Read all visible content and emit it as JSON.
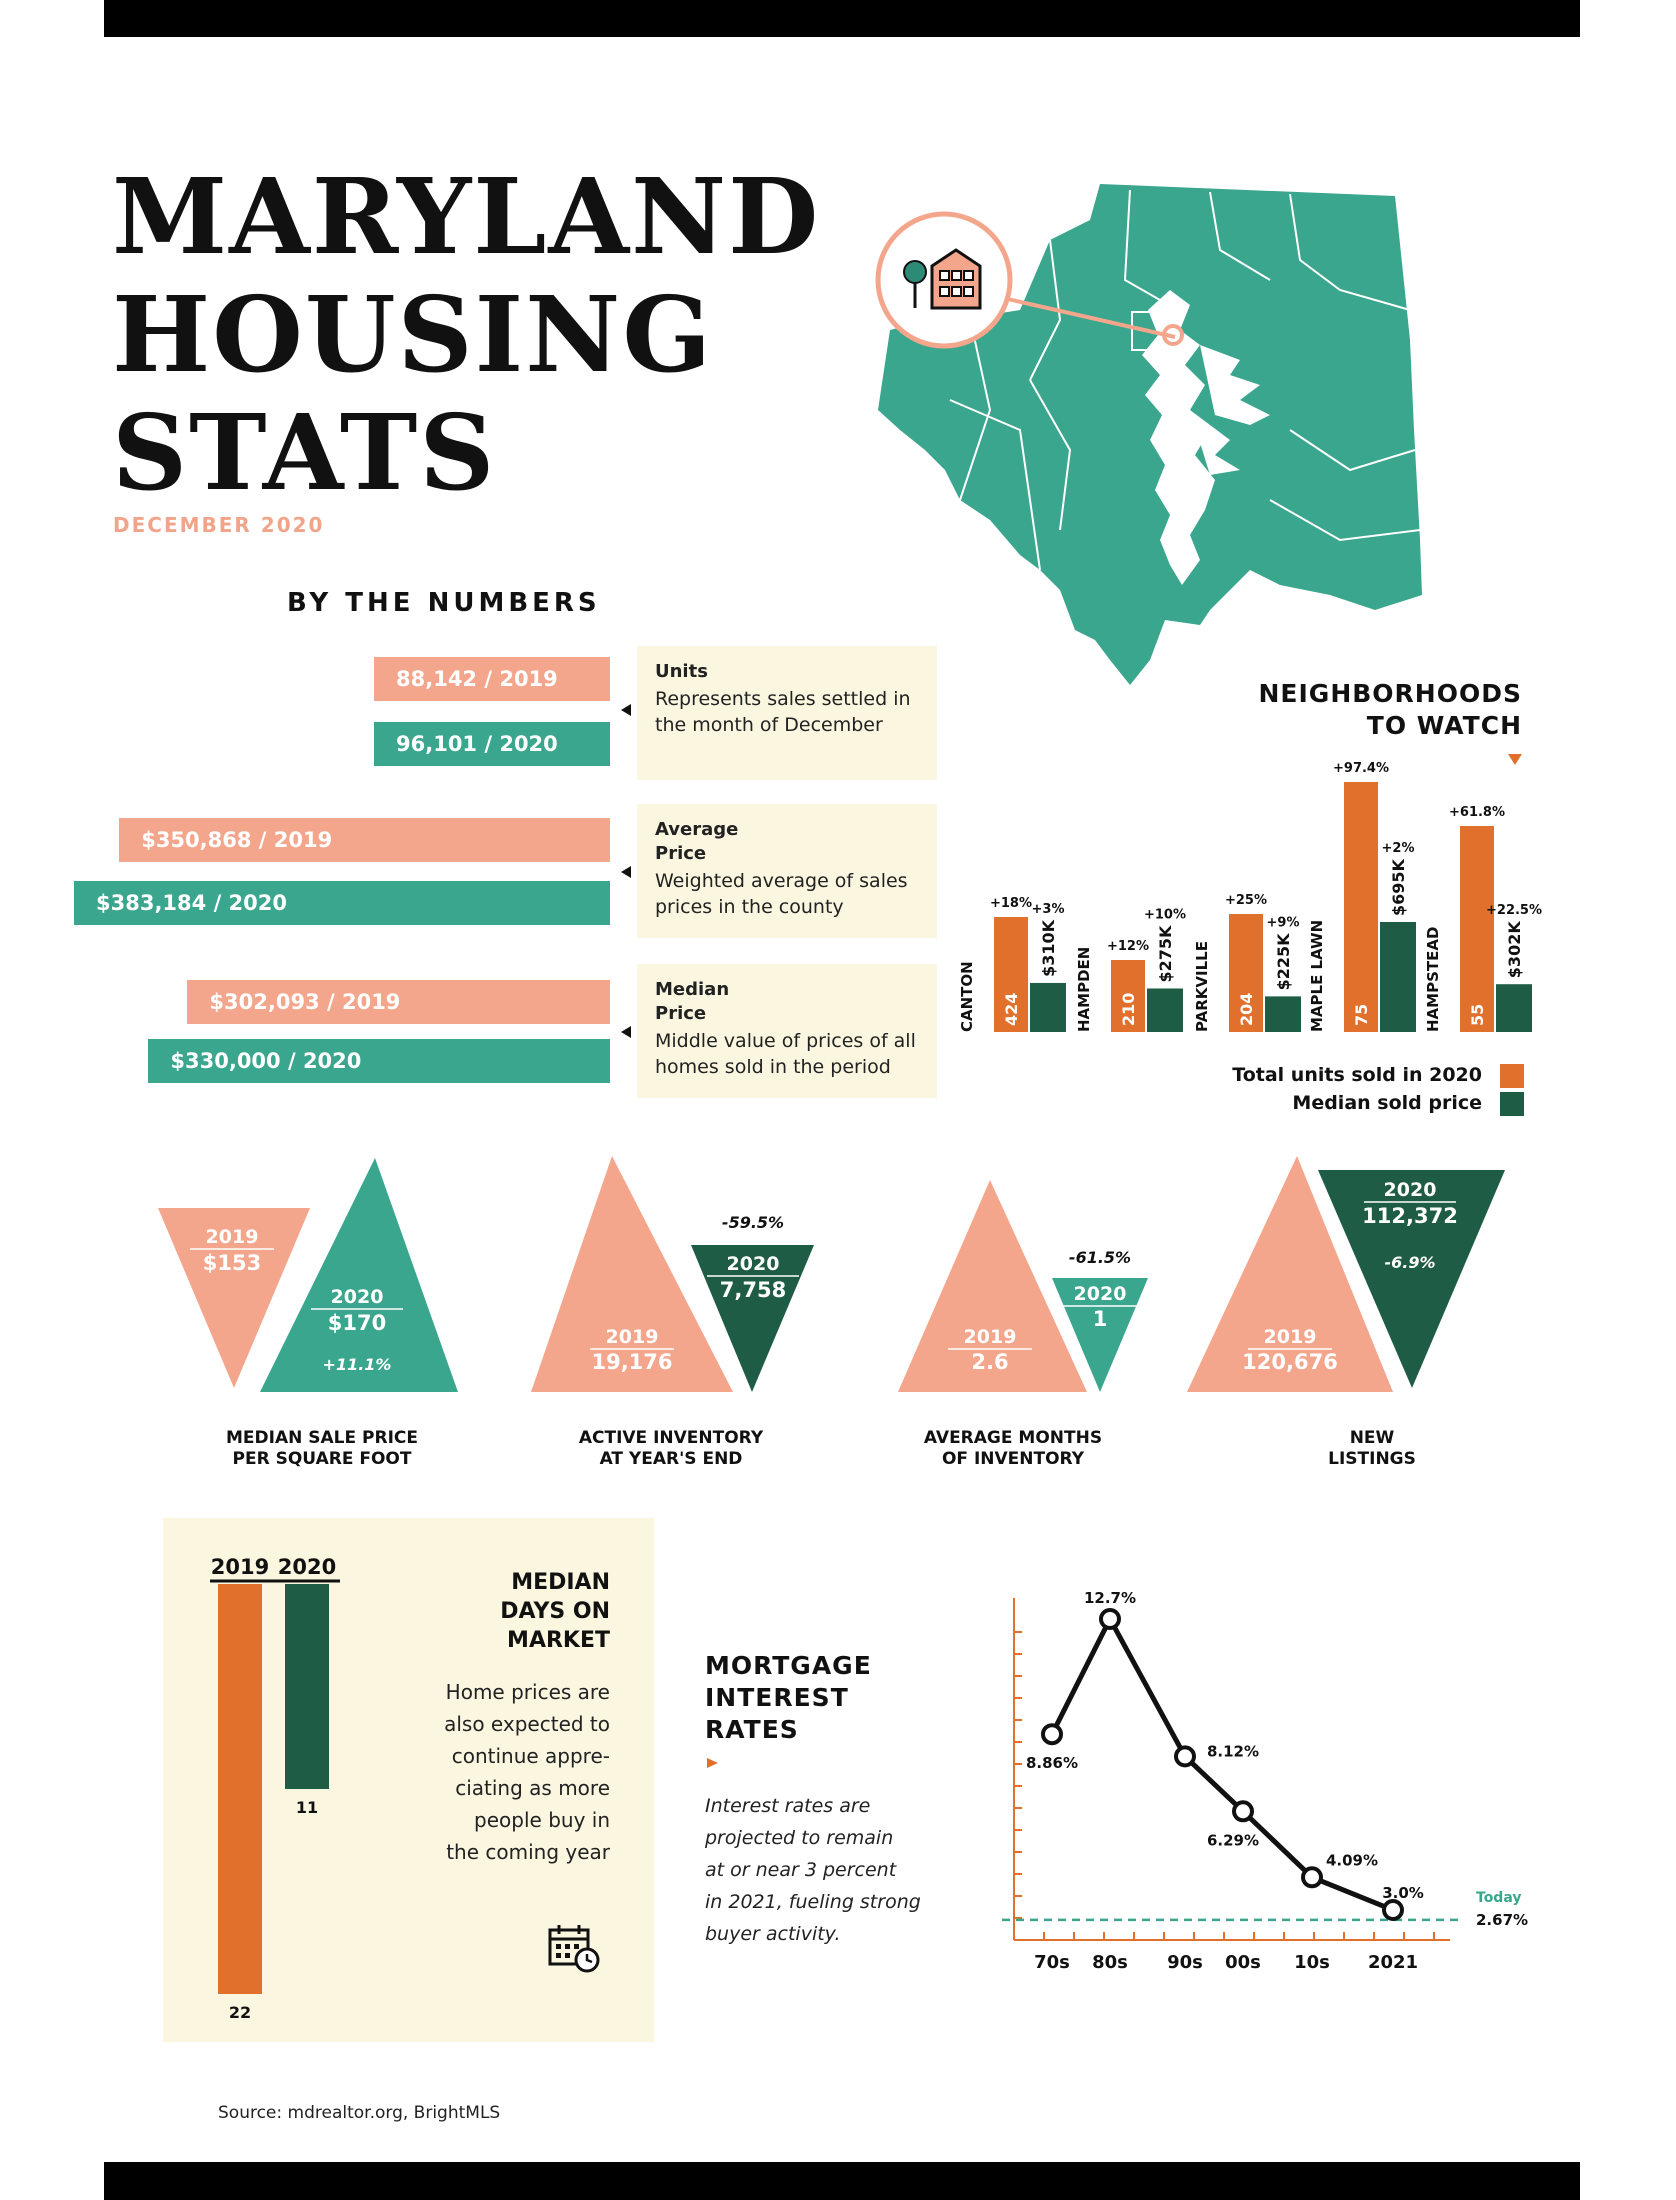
{
  "header": {
    "title_lines": [
      "MARYLAND",
      "HOUSING",
      "STATS"
    ],
    "subtitle": "DECEMBER 2020"
  },
  "by_the_numbers": {
    "heading": "BY THE NUMBERS",
    "items": [
      {
        "label_2019": "88,142 / 2019",
        "label_2020": "96,101 / 2020",
        "value_2019": 88142,
        "value_2020": 96101,
        "title": "Units",
        "description": "Represents sales settled in the month of December"
      },
      {
        "label_2019": "$350,868 / 2019",
        "label_2020": "$383,184 / 2020",
        "value_2019": 350868,
        "value_2020": 383184,
        "title": "Average Price",
        "description": "Weighted average of sales prices in the county"
      },
      {
        "label_2019": "$302,093 / 2019",
        "label_2020": "$330,000 / 2020",
        "value_2019": 302093,
        "value_2020": 330000,
        "title": "Median Price",
        "description": "Middle value of prices of all homes sold in the period"
      }
    ]
  },
  "neighborhoods": {
    "heading_lines": [
      "NEIGHBORHOODS",
      "TO WATCH"
    ],
    "legend": [
      {
        "label": "Total units sold in 2020",
        "color": "#e0702c"
      },
      {
        "label": "Median sold price",
        "color": "#1f5c45"
      }
    ]
  },
  "triangles": [
    {
      "caption_lines": [
        "MEDIAN SALE PRICE",
        "PER SQUARE FOOT"
      ],
      "year_2019": "2019",
      "value_2019": "$153",
      "year_2020": "2020",
      "value_2020": "$170",
      "change": "+11.1%"
    },
    {
      "caption_lines": [
        "ACTIVE INVENTORY",
        "AT YEAR'S END"
      ],
      "year_2019": "2019",
      "value_2019": "19,176",
      "year_2020": "2020",
      "value_2020": "7,758",
      "change": "-59.5%"
    },
    {
      "caption_lines": [
        "AVERAGE MONTHS",
        "OF INVENTORY"
      ],
      "year_2019": "2019",
      "value_2019": "2.6",
      "year_2020": "2020",
      "value_2020": "1",
      "change": "-61.5%"
    },
    {
      "caption_lines": [
        "NEW",
        "LISTINGS"
      ],
      "year_2019": "2019",
      "value_2019": "120,676",
      "year_2020": "2020",
      "value_2020": "112,372",
      "change": "-6.9%"
    }
  ],
  "days_on_market": {
    "title_lines": [
      "MEDIAN",
      "DAYS ON",
      "MARKET"
    ],
    "description_lines": [
      "Home prices are",
      "also expected to",
      "continue appre-",
      "ciating as more",
      "people buy in",
      "the coming year"
    ],
    "calendar_icon": "calendar-clock-icon"
  },
  "mortgage": {
    "title_lines": [
      "MORTGAGE",
      "INTEREST",
      "RATES"
    ],
    "description_lines": [
      "Interest rates are",
      "projected to remain",
      "at or near 3 percent",
      "in 2021, fueling strong",
      "buyer activity."
    ]
  },
  "source": "Source: mdrealtor.org, BrightMLS",
  "colors": {
    "peach": "#f4a68d",
    "teal": "#3aa68e",
    "dark_green": "#1f5c45",
    "orange": "#e0702c",
    "cream": "#fbf6e0"
  },
  "chart_data": [
    {
      "type": "bar",
      "title": "NEIGHBORHOODS TO WATCH",
      "categories": [
        "CANTON",
        "HAMPDEN",
        "PARKVILLE",
        "MAPLE LAWN",
        "HAMPSTEAD"
      ],
      "series": [
        {
          "name": "Total units sold in 2020",
          "values": [
            424,
            210,
            204,
            75,
            55
          ],
          "labels": [
            "424",
            "210",
            "204",
            "75",
            "55"
          ],
          "changes": [
            "+18%",
            "+12%",
            "+25%",
            "+97.4%",
            "+61.8%"
          ],
          "change_values": [
            18,
            12,
            25,
            97.4,
            61.8
          ]
        },
        {
          "name": "Median sold price",
          "values": [
            310000,
            275000,
            225000,
            695000,
            302000
          ],
          "labels": [
            "$310K",
            "$275K",
            "$225K",
            "$695K",
            "$302K"
          ],
          "changes": [
            "+3%",
            "+10%",
            "+9%",
            "+2%",
            "+22.5%"
          ],
          "change_values": [
            3,
            10,
            9,
            2,
            22.5
          ]
        }
      ]
    },
    {
      "type": "bar",
      "title": "MEDIAN DAYS ON MARKET",
      "categories": [
        "2019",
        "2020"
      ],
      "values": [
        22,
        11
      ],
      "ylim": [
        0,
        22
      ]
    },
    {
      "type": "line",
      "title": "MORTGAGE INTEREST RATES",
      "x": [
        "70s",
        "80s",
        "90s",
        "00s",
        "10s",
        "2021"
      ],
      "values": [
        8.86,
        12.7,
        8.12,
        6.29,
        4.09,
        3.0
      ],
      "labels": [
        "8.86%",
        "12.7%",
        "8.12%",
        "6.29%",
        "4.09%",
        "3.0%"
      ],
      "reference": {
        "label": "Today",
        "value": 2.67,
        "value_label": "2.67%"
      },
      "ylim": [
        2,
        13
      ]
    }
  ]
}
